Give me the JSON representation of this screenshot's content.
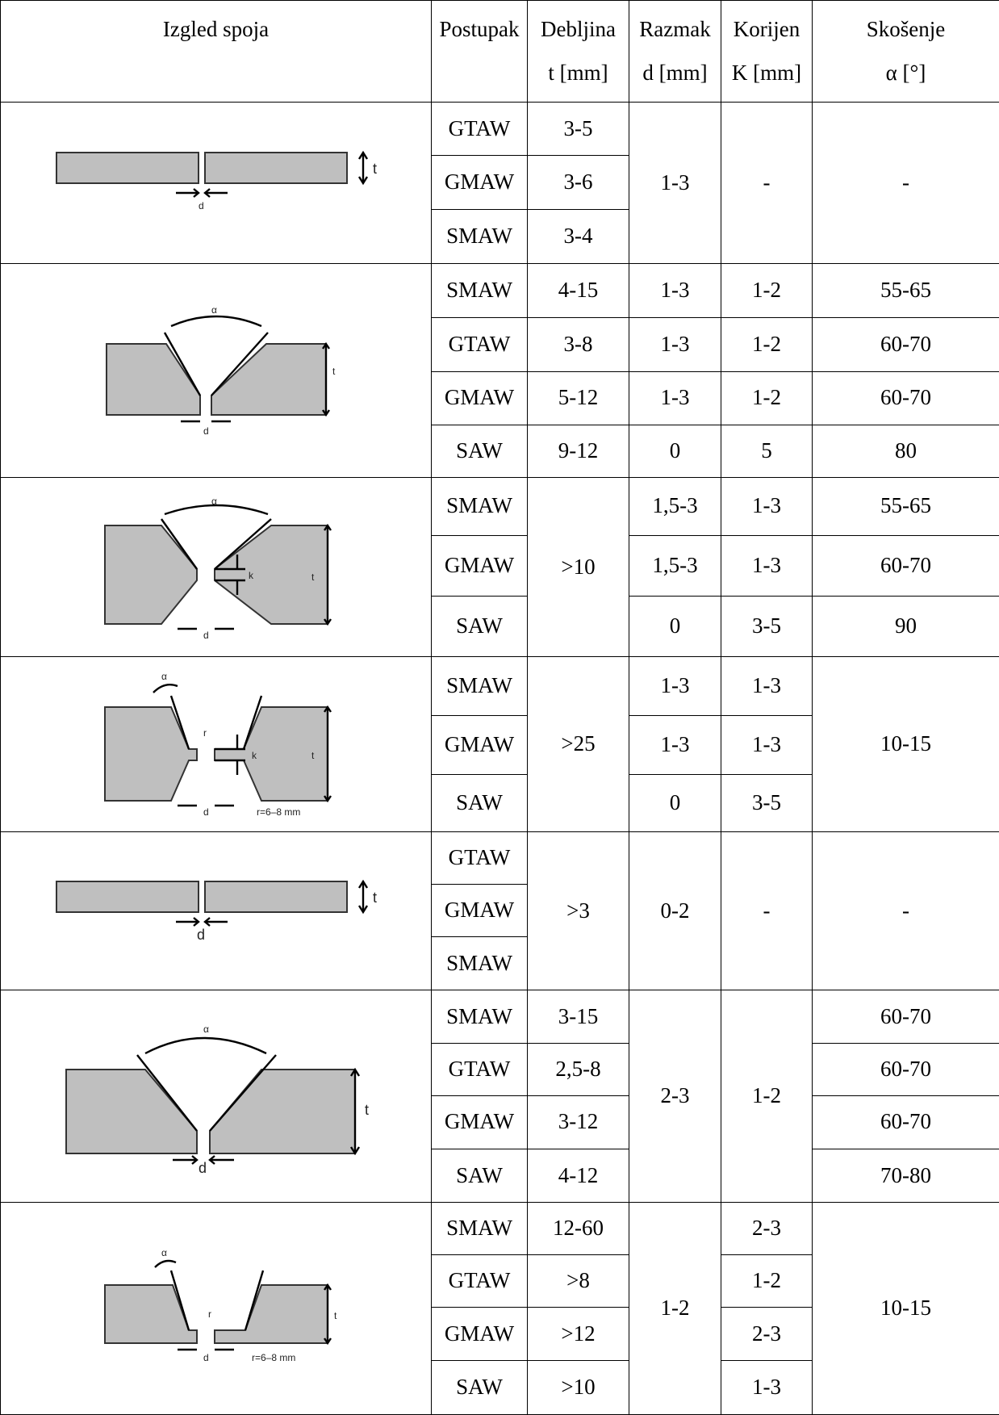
{
  "header": {
    "col1": "Izgled spoja",
    "col2": "Postupak",
    "col3a": "Debljina",
    "col3b": "t [mm]",
    "col4a": "Razmak",
    "col4b": "d [mm]",
    "col5a": "Korijen",
    "col5b": "K [mm]",
    "col6a": "Skošenje",
    "col6b": "α [°]"
  },
  "figure_labels": {
    "t": "t",
    "d": "d",
    "k": "k",
    "alpha": "α",
    "r": "r",
    "r_note_1": "r=6–8 mm",
    "r_note_2": "r=6–8 mm"
  },
  "groups": [
    {
      "figure": "square-butt-thin-icon",
      "rows": [
        {
          "proc": "GTAW",
          "t": "3-5"
        },
        {
          "proc": "GMAW",
          "t": "3-6"
        },
        {
          "proc": "SMAW",
          "t": "3-4"
        }
      ],
      "d": "1-3",
      "k": "-",
      "a": "-"
    },
    {
      "figure": "single-v-groove-icon",
      "rows": [
        {
          "proc": "SMAW",
          "t": "4-15",
          "d": "1-3",
          "k": "1-2",
          "a": "55-65"
        },
        {
          "proc": "GTAW",
          "t": "3-8",
          "d": "1-3",
          "k": "1-2",
          "a": "60-70"
        },
        {
          "proc": "GMAW",
          "t": "5-12",
          "d": "1-3",
          "k": "1-2",
          "a": "60-70"
        },
        {
          "proc": "SAW",
          "t": "9-12",
          "d": "0",
          "k": "5",
          "a": "80"
        }
      ]
    },
    {
      "figure": "double-v-groove-icon",
      "rows": [
        {
          "proc": "SMAW",
          "d": "1,5-3",
          "k": "1-3",
          "a": "55-65"
        },
        {
          "proc": "GMAW",
          "d": "1,5-3",
          "k": "1-3",
          "a": "60-70"
        },
        {
          "proc": "SAW",
          "d": "0",
          "k": "3-5",
          "a": "90"
        }
      ],
      "t": ">10"
    },
    {
      "figure": "double-u-groove-icon",
      "rows": [
        {
          "proc": "SMAW",
          "d": "1-3",
          "k": "1-3"
        },
        {
          "proc": "GMAW",
          "d": "1-3",
          "k": "1-3"
        },
        {
          "proc": "SAW",
          "d": "0",
          "k": "3-5"
        }
      ],
      "t": ">25",
      "a": "10-15"
    },
    {
      "figure": "square-butt-icon",
      "rows": [
        {
          "proc": "GTAW"
        },
        {
          "proc": "GMAW"
        },
        {
          "proc": "SMAW"
        }
      ],
      "t": ">3",
      "d": "0-2",
      "k": "-",
      "a": "-"
    },
    {
      "figure": "single-v-groove-large-icon",
      "rows": [
        {
          "proc": "SMAW",
          "t": "3-15",
          "a": "60-70"
        },
        {
          "proc": "GTAW",
          "t": "2,5-8",
          "a": "60-70"
        },
        {
          "proc": "GMAW",
          "t": "3-12",
          "a": "60-70"
        },
        {
          "proc": "SAW",
          "t": "4-12",
          "a": "70-80"
        }
      ],
      "d": "2-3",
      "k": "1-2"
    },
    {
      "figure": "single-u-groove-icon",
      "rows": [
        {
          "proc": "SMAW",
          "t": "12-60",
          "k": "2-3"
        },
        {
          "proc": "GTAW",
          "t": ">8",
          "k": "1-2"
        },
        {
          "proc": "GMAW",
          "t": ">12",
          "k": "2-3"
        },
        {
          "proc": "SAW",
          "t": ">10",
          "k": "1-3"
        }
      ],
      "d": "1-2",
      "a": "10-15"
    }
  ]
}
